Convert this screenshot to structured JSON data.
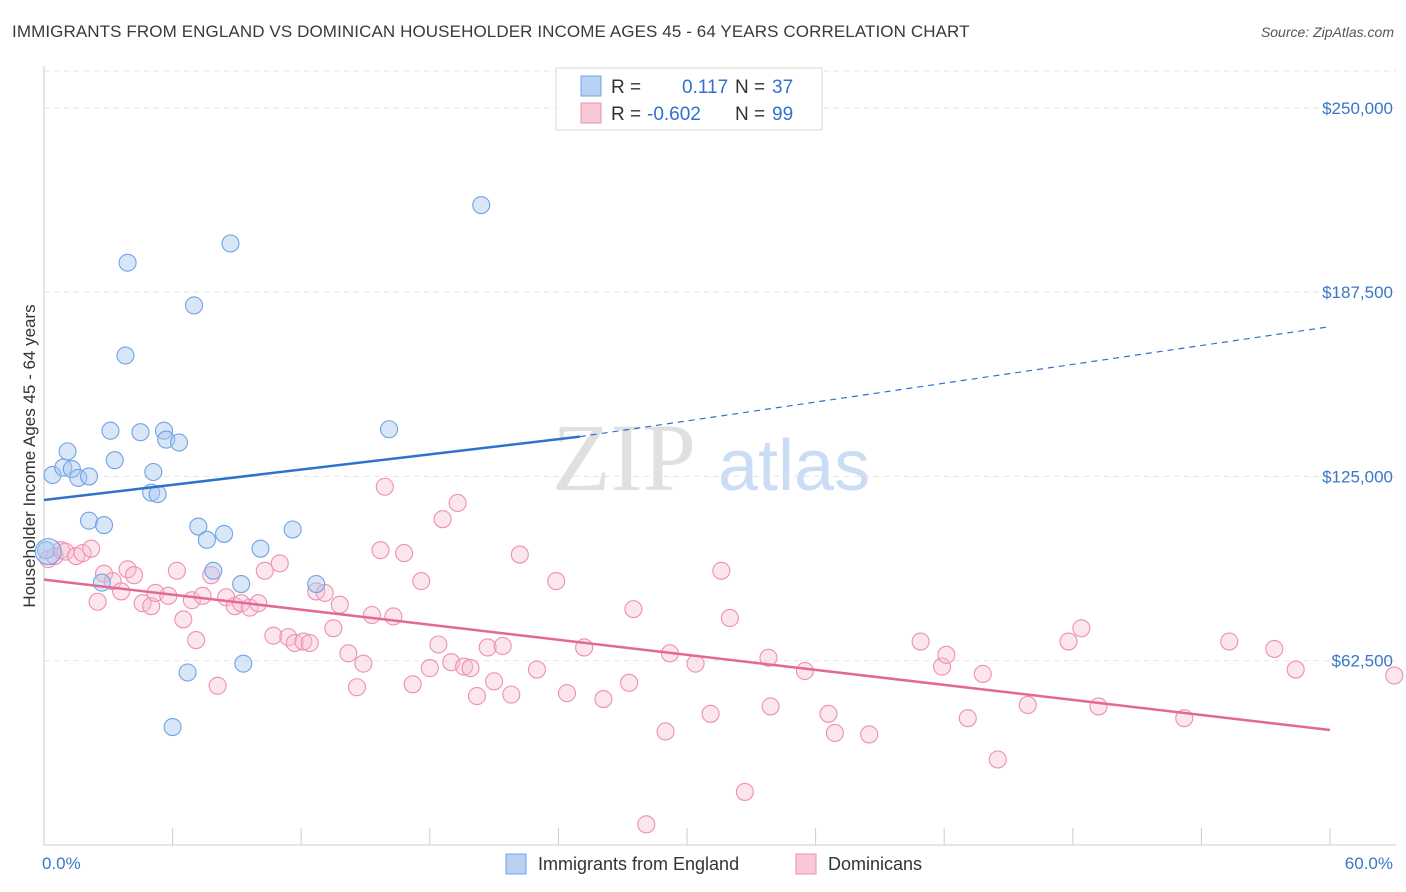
{
  "header": {
    "title": "IMMIGRANTS FROM ENGLAND VS DOMINICAN HOUSEHOLDER INCOME AGES 45 - 64 YEARS CORRELATION CHART",
    "source": "Source: ZipAtlas.com"
  },
  "watermark": {
    "zip": "ZIP",
    "atlas": "atlas"
  },
  "legend_box": {
    "rows": [
      {
        "r_label": "R = ",
        "r_value": "0.117",
        "n_label": "N = ",
        "n_value": "37"
      },
      {
        "r_label": "R = ",
        "r_value": "-0.602",
        "n_label": "N = ",
        "n_value": "99"
      }
    ]
  },
  "chart_data": {
    "type": "scatter",
    "title": "IMMIGRANTS FROM ENGLAND VS DOMINICAN HOUSEHOLDER INCOME AGES 45 - 64 YEARS CORRELATION CHART",
    "xlabel": "",
    "ylabel": "Householder Income Ages 45 - 64 years",
    "xlim": [
      0,
      60
    ],
    "ylim": [
      0,
      262500
    ],
    "x_tick_labels": [
      "0.0%",
      "60.0%"
    ],
    "y_ticks": [
      62500,
      125000,
      187500,
      250000
    ],
    "y_tick_labels": [
      "$62,500",
      "$125,000",
      "$187,500",
      "$250,000"
    ],
    "grid": "horizontal dashed",
    "legend_position": "bottom-center",
    "colors": {
      "england": "#6fa3e4",
      "dominicans": "#ef8fb0",
      "england_line": "#2f72cc",
      "dominicans_line": "#e4679a",
      "tick_label": "#3a76c8"
    },
    "series": [
      {
        "name": "Immigrants from England",
        "color": "#6fa3e4",
        "r": 0.117,
        "n": 37,
        "trend": {
          "x": [
            0,
            25,
            60
          ],
          "y": [
            117000,
            138500,
            175800
          ],
          "solid_until": 25
        },
        "points": [
          [
            0.1,
            100000
          ],
          [
            0.4,
            125500
          ],
          [
            0.9,
            128000
          ],
          [
            1.1,
            133500
          ],
          [
            1.3,
            127500
          ],
          [
            1.6,
            124500
          ],
          [
            2.1,
            125000
          ],
          [
            2.1,
            110000
          ],
          [
            2.7,
            89000
          ],
          [
            2.8,
            108500
          ],
          [
            3.1,
            140500
          ],
          [
            3.3,
            130500
          ],
          [
            3.9,
            197500
          ],
          [
            3.8,
            166000
          ],
          [
            4.5,
            140000
          ],
          [
            5.1,
            126500
          ],
          [
            5.0,
            119500
          ],
          [
            5.3,
            119000
          ],
          [
            5.6,
            140500
          ],
          [
            5.7,
            137500
          ],
          [
            6.3,
            136500
          ],
          [
            6.0,
            40000
          ],
          [
            6.7,
            58500
          ],
          [
            7.0,
            183000
          ],
          [
            7.2,
            108000
          ],
          [
            7.6,
            103500
          ],
          [
            7.9,
            93000
          ],
          [
            8.4,
            105500
          ],
          [
            8.7,
            204000
          ],
          [
            9.2,
            88500
          ],
          [
            9.3,
            61500
          ],
          [
            10.1,
            100500
          ],
          [
            11.6,
            107000
          ],
          [
            12.7,
            88500
          ],
          [
            16.1,
            141000
          ],
          [
            20.4,
            217000
          ],
          [
            0.2,
            99500
          ]
        ]
      },
      {
        "name": "Dominicans",
        "color": "#ef8fb0",
        "r": -0.602,
        "n": 99,
        "trend": {
          "x": [
            0,
            60
          ],
          "y": [
            90000,
            39000
          ]
        },
        "points": [
          [
            0.2,
            97000
          ],
          [
            0.5,
            98000
          ],
          [
            0.8,
            100000
          ],
          [
            1.0,
            99500
          ],
          [
            1.5,
            98000
          ],
          [
            1.8,
            99000
          ],
          [
            2.2,
            100500
          ],
          [
            2.5,
            82500
          ],
          [
            2.8,
            92000
          ],
          [
            3.2,
            89500
          ],
          [
            3.6,
            86000
          ],
          [
            3.9,
            93500
          ],
          [
            4.2,
            91500
          ],
          [
            4.6,
            82000
          ],
          [
            5.0,
            81000
          ],
          [
            5.2,
            85500
          ],
          [
            5.8,
            84500
          ],
          [
            6.2,
            93000
          ],
          [
            6.5,
            76500
          ],
          [
            6.9,
            83000
          ],
          [
            7.1,
            69500
          ],
          [
            7.4,
            84500
          ],
          [
            7.8,
            91500
          ],
          [
            8.1,
            54000
          ],
          [
            8.5,
            84000
          ],
          [
            8.9,
            81000
          ],
          [
            9.2,
            82000
          ],
          [
            9.6,
            80500
          ],
          [
            10.0,
            82000
          ],
          [
            10.3,
            93000
          ],
          [
            10.7,
            71000
          ],
          [
            11.0,
            95500
          ],
          [
            11.4,
            70500
          ],
          [
            11.7,
            68500
          ],
          [
            12.1,
            69000
          ],
          [
            12.4,
            68500
          ],
          [
            12.7,
            86000
          ],
          [
            13.1,
            85500
          ],
          [
            13.5,
            73500
          ],
          [
            13.8,
            81500
          ],
          [
            14.2,
            65000
          ],
          [
            14.6,
            53500
          ],
          [
            14.9,
            61500
          ],
          [
            15.3,
            78000
          ],
          [
            15.7,
            100000
          ],
          [
            15.9,
            121500
          ],
          [
            16.3,
            77500
          ],
          [
            16.8,
            99000
          ],
          [
            17.2,
            54500
          ],
          [
            17.6,
            89500
          ],
          [
            18.0,
            60000
          ],
          [
            18.4,
            68000
          ],
          [
            18.6,
            110500
          ],
          [
            19.0,
            62000
          ],
          [
            19.3,
            116000
          ],
          [
            19.6,
            60500
          ],
          [
            19.9,
            60000
          ],
          [
            20.2,
            50500
          ],
          [
            20.7,
            67000
          ],
          [
            21.0,
            55500
          ],
          [
            21.4,
            67500
          ],
          [
            21.8,
            51000
          ],
          [
            22.2,
            98500
          ],
          [
            23.0,
            59500
          ],
          [
            23.9,
            89500
          ],
          [
            24.4,
            51500
          ],
          [
            25.2,
            67000
          ],
          [
            26.1,
            49500
          ],
          [
            27.3,
            55000
          ],
          [
            27.5,
            80000
          ],
          [
            28.1,
            7000
          ],
          [
            29.0,
            38500
          ],
          [
            29.2,
            65000
          ],
          [
            30.4,
            61500
          ],
          [
            31.1,
            44500
          ],
          [
            31.6,
            93000
          ],
          [
            32.0,
            77000
          ],
          [
            32.7,
            18000
          ],
          [
            33.8,
            63500
          ],
          [
            33.9,
            47000
          ],
          [
            35.5,
            59000
          ],
          [
            36.6,
            44500
          ],
          [
            36.9,
            38000
          ],
          [
            38.5,
            37500
          ],
          [
            40.9,
            69000
          ],
          [
            41.9,
            60500
          ],
          [
            42.1,
            64500
          ],
          [
            43.1,
            43000
          ],
          [
            43.8,
            58000
          ],
          [
            44.5,
            29000
          ],
          [
            45.9,
            47500
          ],
          [
            47.8,
            69000
          ],
          [
            48.4,
            73500
          ],
          [
            49.2,
            47000
          ],
          [
            53.2,
            43000
          ],
          [
            55.3,
            69000
          ],
          [
            57.4,
            66500
          ],
          [
            58.4,
            59500
          ],
          [
            63.0,
            57500
          ]
        ]
      }
    ]
  },
  "bottom_legend": {
    "items": [
      {
        "label": "Immigrants from England"
      },
      {
        "label": "Dominicans"
      }
    ]
  }
}
